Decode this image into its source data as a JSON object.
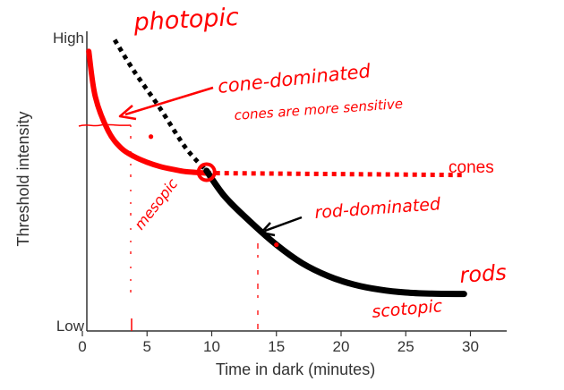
{
  "colors": {
    "annotation": "#ff0000",
    "axis": "#333333",
    "rods_curve": "#000000",
    "cones_curve": "#ff0000"
  },
  "chart_data": {
    "type": "line",
    "xlabel": "Time in dark (minutes)",
    "ylabel": "Threshold intensity",
    "xlim": [
      0,
      32
    ],
    "ylim": [
      0,
      100
    ],
    "x_ticks": [
      0,
      5,
      10,
      15,
      20,
      25,
      30
    ],
    "y_tick_labels": {
      "top": "High",
      "bottom": "Low"
    },
    "series": [
      {
        "name": "cones",
        "color": "#ff0000",
        "style": "solid-then-dotted",
        "solid_points": [
          [
            0.5,
            98
          ],
          [
            1,
            82
          ],
          [
            2,
            70
          ],
          [
            3,
            64
          ],
          [
            4,
            61
          ],
          [
            5,
            59
          ],
          [
            6,
            57.5
          ],
          [
            7,
            56.5
          ],
          [
            8,
            55.7
          ],
          [
            9.6,
            55.2
          ]
        ],
        "dotted_points": [
          [
            9.6,
            55.2
          ],
          [
            29.5,
            54.5
          ]
        ]
      },
      {
        "name": "rods",
        "color": "#000000",
        "style": "dotted-then-solid",
        "dotted_points": [
          [
            2.5,
            102
          ],
          [
            4,
            91
          ],
          [
            6,
            78
          ],
          [
            8,
            64
          ],
          [
            9.6,
            56
          ]
        ],
        "solid_points": [
          [
            9.6,
            56
          ],
          [
            11,
            47
          ],
          [
            13,
            38
          ],
          [
            15,
            30
          ],
          [
            17,
            23.5
          ],
          [
            19,
            19
          ],
          [
            21,
            16
          ],
          [
            23,
            14.2
          ],
          [
            25,
            13.2
          ],
          [
            27,
            12.8
          ],
          [
            29.5,
            12.7
          ]
        ]
      }
    ],
    "series_labels": {
      "cones": "cones",
      "rods": "rods"
    },
    "markers": [
      {
        "x": 9.6,
        "y": 55.5,
        "kind": "crossover"
      },
      {
        "x": 5.3,
        "y": 68
      },
      {
        "x": 15,
        "y": 30
      }
    ],
    "annotations": {
      "photopic": "photopic",
      "cone_dominated": "cone-dominated",
      "cones_sensitive": "cones are more sensitive",
      "mesopic": "mesopic",
      "rod_dominated": "rod-dominated",
      "scotopic": "scotopic"
    }
  }
}
